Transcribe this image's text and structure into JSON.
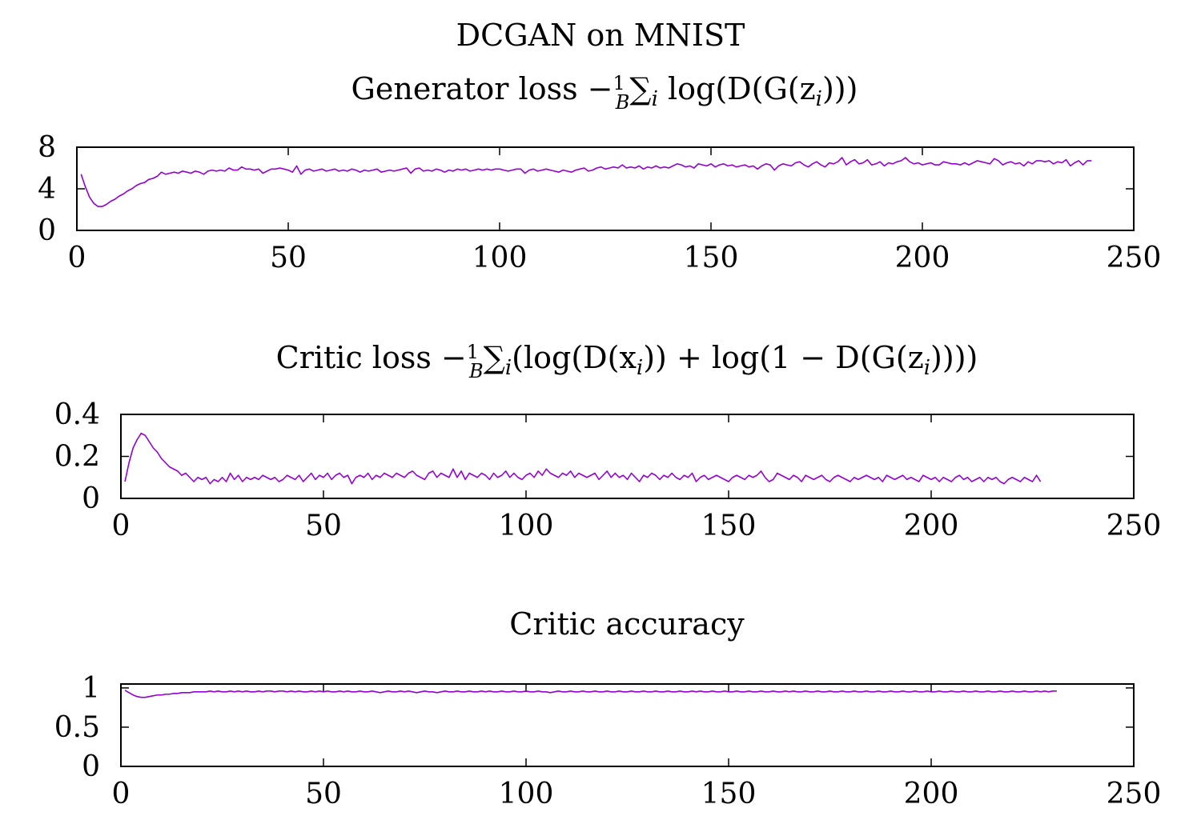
{
  "figure_title": "DCGAN on MNIST",
  "series_color": "#9400D3",
  "chart_data": [
    {
      "type": "line",
      "title": "Generator loss −(1/B) ∑ᵢ log(D(G(zᵢ)))",
      "title_parts": {
        "pre": "Generator loss −",
        "frac_num": "1",
        "frac_den": "B",
        "sum": "∑",
        "sub": "i",
        "post": " log(D(G(z",
        "post_sub": "i",
        "tail": ")))"
      },
      "xlim": [
        0,
        250
      ],
      "ylim": [
        0,
        8
      ],
      "xticks": [
        "0",
        "50",
        "100",
        "150",
        "200",
        "250"
      ],
      "yticks": [
        "0",
        "4",
        "8"
      ],
      "xlabel": "",
      "ylabel": "",
      "grid": false,
      "x_start": 1,
      "x_step": 1,
      "values": [
        5.4,
        4.2,
        3.2,
        2.6,
        2.3,
        2.3,
        2.5,
        2.8,
        3.0,
        3.3,
        3.5,
        3.8,
        4.0,
        4.3,
        4.5,
        4.6,
        4.9,
        5.0,
        5.2,
        5.6,
        5.4,
        5.5,
        5.6,
        5.5,
        5.7,
        5.6,
        5.5,
        5.7,
        5.6,
        5.4,
        5.7,
        5.8,
        5.7,
        5.8,
        5.7,
        6.0,
        5.8,
        5.8,
        6.1,
        5.9,
        5.9,
        5.8,
        5.9,
        5.5,
        5.7,
        5.9,
        5.9,
        6.0,
        5.9,
        5.8,
        5.6,
        6.2,
        5.4,
        5.8,
        5.9,
        5.7,
        5.8,
        5.9,
        5.7,
        5.8,
        5.9,
        5.7,
        5.8,
        5.7,
        5.9,
        5.8,
        5.6,
        5.8,
        5.7,
        5.8,
        5.9,
        5.6,
        5.7,
        5.8,
        5.7,
        5.8,
        5.9,
        6.0,
        5.5,
        5.9,
        6.0,
        5.7,
        5.8,
        5.7,
        5.9,
        5.8,
        5.6,
        5.8,
        5.7,
        5.9,
        5.8,
        5.9,
        5.7,
        5.8,
        5.9,
        5.8,
        5.9,
        5.8,
        5.9,
        5.9,
        5.8,
        5.7,
        5.8,
        5.9,
        5.9,
        5.5,
        5.8,
        5.9,
        5.7,
        5.8,
        5.9,
        5.8,
        5.7,
        5.6,
        5.8,
        5.7,
        5.6,
        5.8,
        5.9,
        6.0,
        5.7,
        5.8,
        6.0,
        6.1,
        5.9,
        6.0,
        6.1,
        6.0,
        6.3,
        6.0,
        6.1,
        6.0,
        6.2,
        5.9,
        6.1,
        6.0,
        6.2,
        6.0,
        6.1,
        6.0,
        6.2,
        6.4,
        6.3,
        6.1,
        6.2,
        6.0,
        6.4,
        6.3,
        6.2,
        6.4,
        6.1,
        6.3,
        6.4,
        6.2,
        6.3,
        6.1,
        6.2,
        6.3,
        6.1,
        6.2,
        5.9,
        6.2,
        6.4,
        6.3,
        5.8,
        6.2,
        6.4,
        6.3,
        6.2,
        6.5,
        6.6,
        6.3,
        6.1,
        6.4,
        6.6,
        6.3,
        6.1,
        6.5,
        6.4,
        6.6,
        7.0,
        6.3,
        6.6,
        6.8,
        6.4,
        6.5,
        6.8,
        6.3,
        6.4,
        6.6,
        6.2,
        6.5,
        6.4,
        6.6,
        6.7,
        7.0,
        6.6,
        6.4,
        6.5,
        6.3,
        6.4,
        6.5,
        6.3,
        6.3,
        6.6,
        6.5,
        6.4,
        6.4,
        6.3,
        6.5,
        6.3,
        6.5,
        6.7,
        6.6,
        6.5,
        6.4,
        6.9,
        6.7,
        6.3,
        6.5,
        6.6,
        6.4,
        6.5,
        6.2,
        6.6,
        6.4,
        6.7,
        6.7,
        6.6,
        6.7,
        6.4,
        6.6,
        6.5,
        6.8,
        6.2,
        6.5,
        6.7,
        6.3,
        6.7,
        6.7
      ]
    },
    {
      "type": "line",
      "title": "Critic loss −(1/B) ∑ᵢ(log(D(xᵢ)) + log(1 − D(G(zᵢ))))",
      "title_parts": {
        "pre": "Critic loss −",
        "frac_num": "1",
        "frac_den": "B",
        "sum": "∑",
        "sub": "i",
        "post": "(log(D(x",
        "post_sub": "i",
        "mid": ")) + log(1 − D(G(z",
        "mid_sub": "i",
        "tail": "))))"
      },
      "xlim": [
        0,
        250
      ],
      "ylim": [
        0,
        0.4
      ],
      "xticks": [
        "0",
        "50",
        "100",
        "150",
        "200",
        "250"
      ],
      "yticks": [
        "0",
        "0.2",
        "0.4"
      ],
      "xlabel": "",
      "ylabel": "",
      "grid": false,
      "x_start": 1,
      "x_step": 1,
      "values": [
        0.08,
        0.17,
        0.24,
        0.28,
        0.31,
        0.3,
        0.27,
        0.24,
        0.22,
        0.19,
        0.17,
        0.15,
        0.14,
        0.13,
        0.11,
        0.12,
        0.1,
        0.08,
        0.1,
        0.09,
        0.1,
        0.07,
        0.09,
        0.08,
        0.1,
        0.08,
        0.12,
        0.09,
        0.11,
        0.08,
        0.1,
        0.09,
        0.1,
        0.09,
        0.11,
        0.1,
        0.09,
        0.1,
        0.08,
        0.09,
        0.11,
        0.1,
        0.09,
        0.11,
        0.08,
        0.1,
        0.12,
        0.09,
        0.11,
        0.1,
        0.12,
        0.09,
        0.11,
        0.12,
        0.1,
        0.11,
        0.07,
        0.1,
        0.11,
        0.1,
        0.12,
        0.09,
        0.11,
        0.1,
        0.12,
        0.11,
        0.1,
        0.12,
        0.11,
        0.1,
        0.12,
        0.13,
        0.11,
        0.1,
        0.09,
        0.12,
        0.13,
        0.1,
        0.12,
        0.11,
        0.1,
        0.14,
        0.1,
        0.13,
        0.09,
        0.12,
        0.11,
        0.1,
        0.12,
        0.11,
        0.09,
        0.12,
        0.1,
        0.11,
        0.13,
        0.1,
        0.12,
        0.1,
        0.09,
        0.11,
        0.12,
        0.1,
        0.13,
        0.11,
        0.14,
        0.12,
        0.11,
        0.1,
        0.12,
        0.11,
        0.13,
        0.1,
        0.12,
        0.11,
        0.1,
        0.11,
        0.12,
        0.09,
        0.11,
        0.13,
        0.1,
        0.12,
        0.1,
        0.11,
        0.09,
        0.12,
        0.1,
        0.08,
        0.11,
        0.1,
        0.12,
        0.11,
        0.09,
        0.11,
        0.1,
        0.12,
        0.1,
        0.09,
        0.11,
        0.1,
        0.12,
        0.08,
        0.1,
        0.11,
        0.09,
        0.1,
        0.11,
        0.1,
        0.09,
        0.08,
        0.1,
        0.11,
        0.1,
        0.09,
        0.11,
        0.1,
        0.11,
        0.13,
        0.1,
        0.08,
        0.09,
        0.12,
        0.11,
        0.1,
        0.09,
        0.11,
        0.1,
        0.08,
        0.11,
        0.1,
        0.09,
        0.1,
        0.11,
        0.09,
        0.08,
        0.1,
        0.11,
        0.1,
        0.09,
        0.08,
        0.1,
        0.09,
        0.1,
        0.11,
        0.1,
        0.09,
        0.1,
        0.08,
        0.11,
        0.1,
        0.09,
        0.1,
        0.11,
        0.09,
        0.1,
        0.09,
        0.08,
        0.11,
        0.1,
        0.09,
        0.1,
        0.08,
        0.1,
        0.09,
        0.08,
        0.1,
        0.11,
        0.09,
        0.1,
        0.08,
        0.09,
        0.1,
        0.08,
        0.1,
        0.09,
        0.1,
        0.08,
        0.07,
        0.09,
        0.1,
        0.09,
        0.08,
        0.1,
        0.09,
        0.08,
        0.11,
        0.08
      ]
    },
    {
      "type": "line",
      "title": "Critic accuracy",
      "xlim": [
        0,
        250
      ],
      "ylim": [
        0,
        1.05
      ],
      "xticks": [
        "0",
        "50",
        "100",
        "150",
        "200",
        "250"
      ],
      "yticks": [
        "0",
        "0.5",
        "1"
      ],
      "xlabel": "",
      "ylabel": "",
      "grid": false,
      "x_start": 1,
      "x_step": 1,
      "values": [
        0.97,
        0.94,
        0.91,
        0.89,
        0.88,
        0.88,
        0.89,
        0.9,
        0.91,
        0.91,
        0.92,
        0.92,
        0.93,
        0.93,
        0.94,
        0.94,
        0.94,
        0.95,
        0.95,
        0.95,
        0.95,
        0.96,
        0.95,
        0.96,
        0.95,
        0.95,
        0.96,
        0.95,
        0.96,
        0.95,
        0.96,
        0.95,
        0.95,
        0.96,
        0.95,
        0.96,
        0.96,
        0.95,
        0.96,
        0.96,
        0.95,
        0.96,
        0.95,
        0.96,
        0.95,
        0.95,
        0.96,
        0.95,
        0.96,
        0.95,
        0.96,
        0.95,
        0.95,
        0.96,
        0.95,
        0.96,
        0.95,
        0.95,
        0.96,
        0.95,
        0.95,
        0.96,
        0.95,
        0.94,
        0.95,
        0.96,
        0.95,
        0.95,
        0.96,
        0.95,
        0.96,
        0.95,
        0.94,
        0.95,
        0.96,
        0.95,
        0.95,
        0.94,
        0.95,
        0.96,
        0.95,
        0.95,
        0.96,
        0.95,
        0.95,
        0.96,
        0.95,
        0.95,
        0.96,
        0.95,
        0.96,
        0.95,
        0.95,
        0.96,
        0.95,
        0.95,
        0.96,
        0.95,
        0.95,
        0.96,
        0.95,
        0.95,
        0.96,
        0.95,
        0.95,
        0.94,
        0.95,
        0.96,
        0.95,
        0.95,
        0.96,
        0.95,
        0.95,
        0.96,
        0.95,
        0.95,
        0.96,
        0.95,
        0.95,
        0.96,
        0.95,
        0.95,
        0.96,
        0.95,
        0.95,
        0.96,
        0.95,
        0.95,
        0.96,
        0.95,
        0.95,
        0.96,
        0.95,
        0.95,
        0.96,
        0.95,
        0.95,
        0.96,
        0.95,
        0.95,
        0.96,
        0.95,
        0.96,
        0.95,
        0.95,
        0.96,
        0.95,
        0.95,
        0.96,
        0.95,
        0.95,
        0.96,
        0.95,
        0.95,
        0.96,
        0.95,
        0.95,
        0.96,
        0.95,
        0.95,
        0.96,
        0.95,
        0.95,
        0.96,
        0.95,
        0.96,
        0.95,
        0.95,
        0.96,
        0.95,
        0.95,
        0.96,
        0.95,
        0.95,
        0.96,
        0.95,
        0.95,
        0.96,
        0.95,
        0.95,
        0.96,
        0.95,
        0.95,
        0.96,
        0.95,
        0.95,
        0.96,
        0.95,
        0.95,
        0.96,
        0.95,
        0.95,
        0.96,
        0.95,
        0.95,
        0.96,
        0.95,
        0.95,
        0.96,
        0.95,
        0.95,
        0.96,
        0.95,
        0.95,
        0.96,
        0.95,
        0.95,
        0.96,
        0.95,
        0.95,
        0.96,
        0.95,
        0.95,
        0.96,
        0.95,
        0.95,
        0.96,
        0.95,
        0.95,
        0.96,
        0.95,
        0.95,
        0.96,
        0.95,
        0.95,
        0.96,
        0.95,
        0.96,
        0.95,
        0.96,
        0.96
      ]
    }
  ]
}
